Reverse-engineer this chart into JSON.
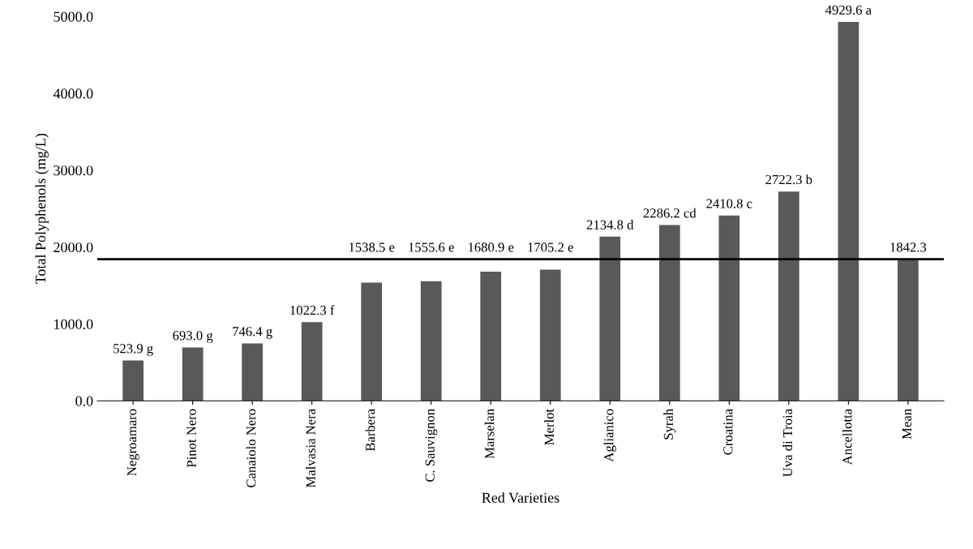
{
  "chart_data": {
    "type": "bar",
    "xlabel": "Red Varieties",
    "ylabel": "Total Polyphenols (mg/L)",
    "categories": [
      "Negroamaro",
      "Pinot Nero",
      "Canaiolo Nero",
      "Malvasia Nera",
      "Barbera",
      "C. Sauvignon",
      "Marselan",
      "Merlot",
      "Aglianico",
      "Syrah",
      "Croatina",
      "Uva di Troia",
      "Ancellotta",
      "Mean"
    ],
    "values": [
      523.9,
      693.0,
      746.4,
      1022.3,
      1538.5,
      1555.6,
      1680.9,
      1705.2,
      2134.8,
      2286.2,
      2410.8,
      2722.3,
      4929.6,
      1842.3
    ],
    "value_labels": [
      "523.9 g",
      "693.0 g",
      "746.4 g",
      "1022.3 f",
      "1538.5 e",
      "1555.6 e",
      "1680.9 e",
      "1705.2 e",
      "2134.8 d",
      "2286.2 cd",
      "2410.8 c",
      "2722.3 b",
      "4929.6 a",
      "1842.3"
    ],
    "color": "#595959",
    "ylim": [
      0,
      5000
    ],
    "yticks": [
      {
        "value": 0,
        "label": "0.0"
      },
      {
        "value": 1000,
        "label": "1000.0"
      },
      {
        "value": 2000,
        "label": "2000.0"
      },
      {
        "value": 3000,
        "label": "3000.0"
      },
      {
        "value": 4000,
        "label": "4000.0"
      },
      {
        "value": 5000,
        "label": "5000.0"
      }
    ],
    "ref_lines": [
      {
        "axis": "y",
        "value": 1842.3,
        "label": null,
        "color": "#000000"
      }
    ],
    "grid": false,
    "legend": false
  }
}
